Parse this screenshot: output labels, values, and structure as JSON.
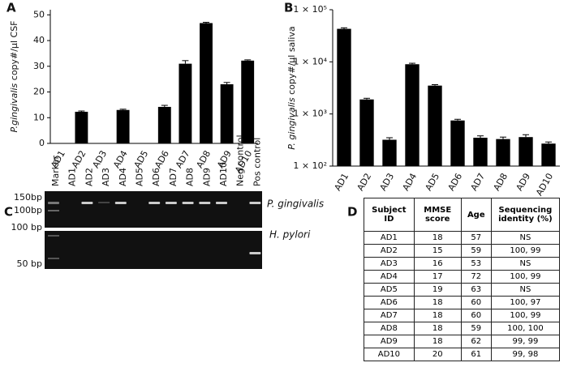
{
  "chart_data": [
    {
      "type": "bar",
      "panel": "A",
      "ylabel": [
        "P.gingivalis",
        "copy#/µl CSF"
      ],
      "categories": [
        "AD1",
        "AD2",
        "AD3",
        "AD4",
        "AD5",
        "AD6",
        "AD7",
        "AD8",
        "AD9",
        "AD10"
      ],
      "values": [
        0,
        12.3,
        0,
        13,
        0,
        14.2,
        31,
        46.8,
        23,
        32.2
      ],
      "errors": [
        0,
        0.3,
        0,
        0.3,
        0,
        0.6,
        1.2,
        0.3,
        0.7,
        0.3
      ],
      "color": "#000000",
      "ylim": [
        0,
        52
      ],
      "yticks": [
        0,
        10,
        20,
        30,
        40,
        50
      ],
      "log": false
    },
    {
      "type": "bar",
      "panel": "B",
      "ylabel": [
        "P. gingivalis",
        "copy#/µl saliva"
      ],
      "categories": [
        "AD1",
        "AD2",
        "AD3",
        "AD4",
        "AD5",
        "AD6",
        "AD7",
        "AD8",
        "AD9",
        "AD10"
      ],
      "values": [
        43000,
        1900,
        320,
        9000,
        3500,
        750,
        350,
        330,
        360,
        270
      ],
      "errors": [
        2000,
        100,
        30,
        400,
        150,
        40,
        30,
        30,
        40,
        20
      ],
      "color": "#000000",
      "ylim": [
        100,
        100000
      ],
      "log": true,
      "yticks": [
        {
          "value": 100,
          "label": "1 × 10²"
        },
        {
          "value": 1000,
          "label": "1 × 10³"
        },
        {
          "value": 10000,
          "label": "1 × 10⁴"
        },
        {
          "value": 100000,
          "label": "1 × 10⁵"
        }
      ]
    }
  ],
  "gel": {
    "panel": "C",
    "lanes": [
      "Marker",
      "AD1",
      "AD2",
      "AD3",
      "AD4",
      "AD5",
      "AD6",
      "AD7",
      "AD8",
      "AD9",
      "AD10",
      "Neg control",
      "Pos control"
    ],
    "size_markers_top": [
      "150bp",
      "100bp"
    ],
    "size_markers_bottom": [
      "100 bp",
      "50 bp"
    ],
    "targets": [
      "P. gingivalis",
      "H. pylori"
    ]
  },
  "table": {
    "panel": "D",
    "header": [
      "Subject ID",
      "MMSE score",
      "Age",
      "Sequencing identity (%)"
    ],
    "rows": [
      [
        "AD1",
        18,
        57,
        "NS"
      ],
      [
        "AD2",
        15,
        59,
        "100, 99"
      ],
      [
        "AD3",
        16,
        53,
        "NS"
      ],
      [
        "AD4",
        17,
        72,
        "100, 99"
      ],
      [
        "AD5",
        19,
        63,
        "NS"
      ],
      [
        "AD6",
        18,
        60,
        "100, 97"
      ],
      [
        "AD7",
        18,
        60,
        "100, 99"
      ],
      [
        "AD8",
        18,
        59,
        "100, 100"
      ],
      [
        "AD9",
        18,
        62,
        "99, 99"
      ],
      [
        "AD10",
        20,
        61,
        "99, 98"
      ]
    ]
  }
}
